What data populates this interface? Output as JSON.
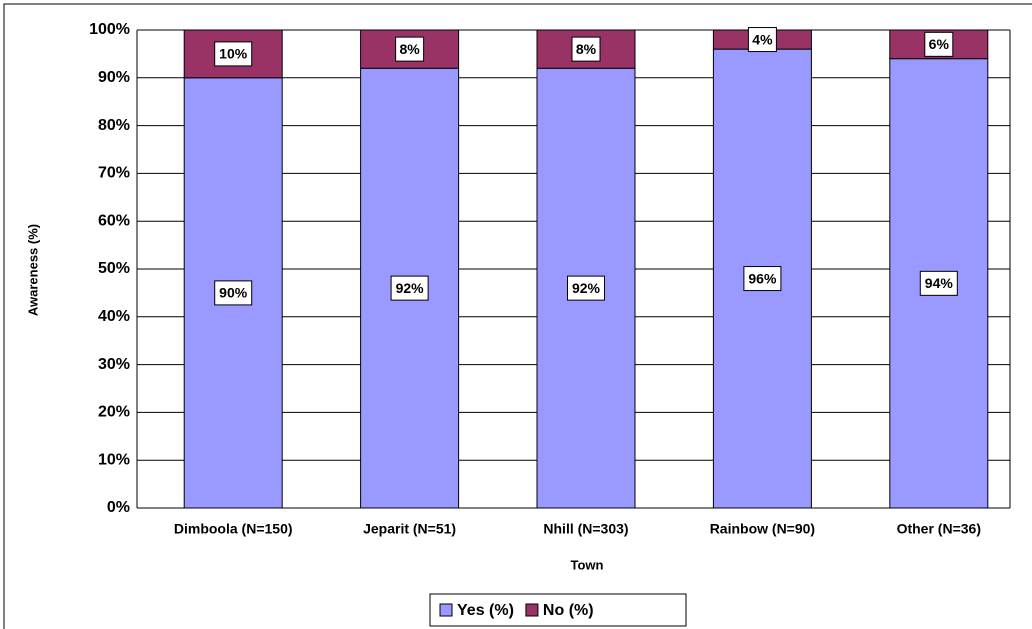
{
  "chart_data": {
    "type": "stacked_bar",
    "categories": [
      "Dimboola (N=150)",
      "Jeparit (N=51)",
      "Nhill (N=303)",
      "Rainbow (N=90)",
      "Other (N=36)"
    ],
    "series": [
      {
        "name": "Yes (%)",
        "color": "#9999ff",
        "values": [
          90,
          92,
          92,
          96,
          94
        ],
        "value_labels": [
          "90%",
          "92%",
          "92%",
          "96%",
          "94%"
        ]
      },
      {
        "name": "No (%)",
        "color": "#993366",
        "values": [
          10,
          8,
          8,
          4,
          6
        ],
        "value_labels": [
          "10%",
          "8%",
          "8%",
          "4%",
          "6%"
        ]
      }
    ],
    "x_label": "Town",
    "y_label": "Awareness (%)",
    "ylim": [
      0,
      100
    ],
    "yticks": [
      {
        "value": 0,
        "label": "0%"
      },
      {
        "value": 10,
        "label": "10%"
      },
      {
        "value": 20,
        "label": "20%"
      },
      {
        "value": 30,
        "label": "30%"
      },
      {
        "value": 40,
        "label": "40%"
      },
      {
        "value": 50,
        "label": "50%"
      },
      {
        "value": 60,
        "label": "60%"
      },
      {
        "value": 70,
        "label": "70%"
      },
      {
        "value": 80,
        "label": "80%"
      },
      {
        "value": 90,
        "label": "90%"
      },
      {
        "value": 100,
        "label": "100%"
      }
    ],
    "grid": true,
    "legend": "bottom"
  }
}
